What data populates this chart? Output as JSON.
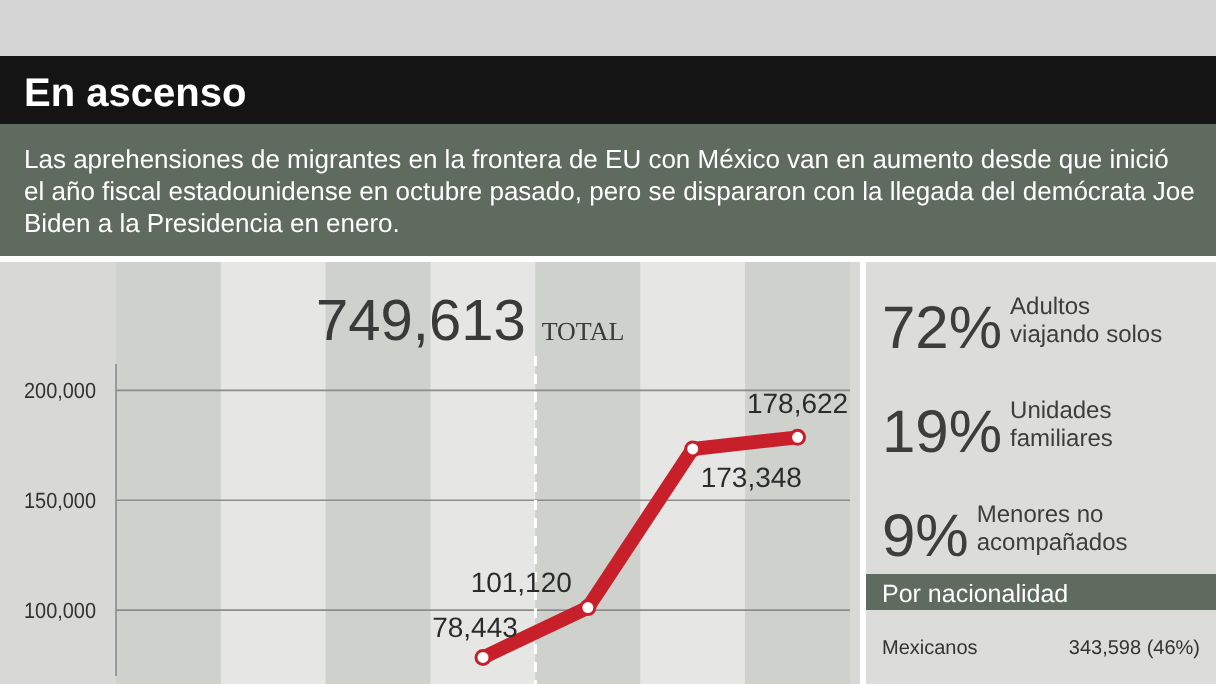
{
  "chart_data": [
    {
      "type": "line",
      "title": "En ascenso",
      "subtitle": "Las aprehensiones de migrantes en la frontera de EU con México van en aumento desde que inició el año fiscal estadounidense en octubre pasado, pero se dispararon con la llegada del demócrata Joe Biden a la Presidencia en enero.",
      "categories": [
        null,
        null,
        null,
        null,
        null,
        null,
        null
      ],
      "series": [
        {
          "color": "#c8202a",
          "values": [
            null,
            null,
            null,
            78443,
            101120,
            173348,
            178622
          ],
          "value_labels": [
            null,
            null,
            null,
            "78,443",
            "101,120",
            "173,348",
            "178,622"
          ]
        }
      ],
      "ylim": [
        70000,
        212000
      ],
      "yticks": [
        {
          "value": 100000,
          "label": "100,000"
        },
        {
          "value": 150000,
          "label": "150,000"
        },
        {
          "value": 200000,
          "label": "200,000"
        }
      ],
      "grid": "y",
      "marker": "circle",
      "annotations": [
        "749,613",
        "TOTAL"
      ]
    },
    {
      "type": "other",
      "subtitle": "Por nacionalidad",
      "annotations": [
        "72%",
        "Adultos viajando solos",
        "19%",
        "Unidades familiares",
        "9%",
        "Menores no acompañados",
        "Mexicanos",
        "343,598 (46%)"
      ]
    }
  ]
}
